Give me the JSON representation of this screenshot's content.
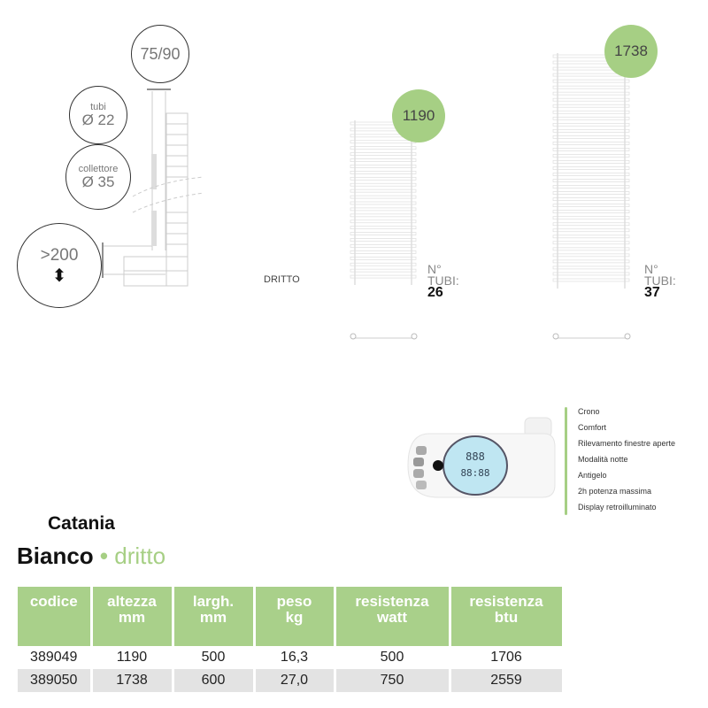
{
  "diagram": {
    "gap_label": "75/90",
    "tubi_label": "tubi",
    "tubi_value": "Ø 22",
    "collettore_label": "collettore",
    "collettore_value": "Ø 35",
    "distance_label": ">200"
  },
  "model_label": "DRITTO",
  "radiators": [
    {
      "height": "1190",
      "tubi_label_1": "N°",
      "tubi_label_2": "TUBI:",
      "tubi_count": "26"
    },
    {
      "height": "1738",
      "tubi_label_1": "N°",
      "tubi_label_2": "TUBI:",
      "tubi_count": "37"
    }
  ],
  "features": [
    "Crono",
    "Comfort",
    "Rilevamento finestre aperte",
    "Modalità notte",
    "Antigelo",
    "2h potenza massima",
    "Display retroilluminato"
  ],
  "product": {
    "name": "Catania",
    "color": "Bianco",
    "separator": "•",
    "variant": "dritto"
  },
  "table": {
    "headers": [
      [
        "codice",
        ""
      ],
      [
        "altezza",
        "mm"
      ],
      [
        "largh.",
        "mm"
      ],
      [
        "peso",
        "kg"
      ],
      [
        "resistenza",
        "watt"
      ],
      [
        "resistenza",
        "btu"
      ]
    ],
    "rows": [
      [
        "389049",
        "1190",
        "500",
        "16,3",
        "500",
        "1706"
      ],
      [
        "389050",
        "1738",
        "600",
        "27,0",
        "750",
        "2559"
      ]
    ]
  },
  "colors": {
    "accent": "#a6cf84",
    "header": "#a9d08a",
    "row_alt": "#e3e3e3"
  }
}
